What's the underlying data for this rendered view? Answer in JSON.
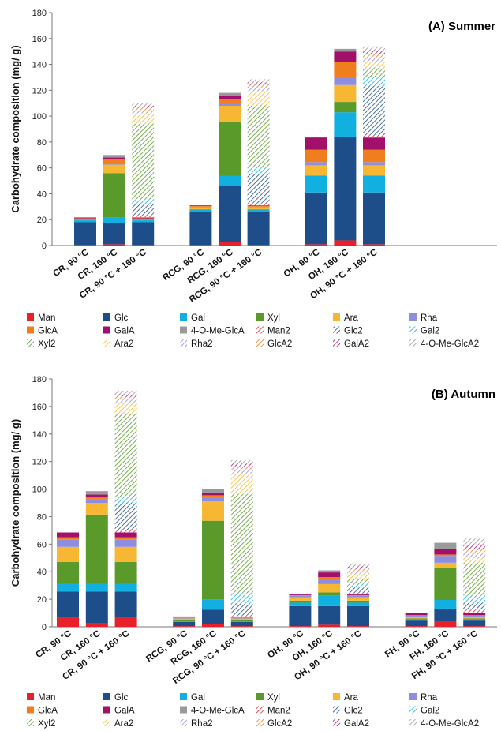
{
  "palette": {
    "Man": "#e8202a",
    "Glc": "#1d4e89",
    "Gal": "#12b0e0",
    "Xyl": "#5a9a2a",
    "Ara": "#f7b733",
    "Rha": "#8e8ee0",
    "GlcA": "#f07d1e",
    "GalA": "#a3106b",
    "4-O-Me-GlcA": "#9a9a9a"
  },
  "legend": {
    "columns": 6,
    "entries": [
      {
        "label": "Man",
        "color": "Man",
        "hatched": false
      },
      {
        "label": "Glc",
        "color": "Glc",
        "hatched": false
      },
      {
        "label": "Gal",
        "color": "Gal",
        "hatched": false
      },
      {
        "label": "Xyl",
        "color": "Xyl",
        "hatched": false
      },
      {
        "label": "Ara",
        "color": "Ara",
        "hatched": false
      },
      {
        "label": "Rha",
        "color": "Rha",
        "hatched": false
      },
      {
        "label": "GlcA",
        "color": "GlcA",
        "hatched": false
      },
      {
        "label": "GalA",
        "color": "GalA",
        "hatched": false
      },
      {
        "label": "4-O-Me-GlcA",
        "color": "4-O-Me-GlcA",
        "hatched": false
      },
      {
        "label": "Man2",
        "color": "Man",
        "hatched": true
      },
      {
        "label": "Glc2",
        "color": "Glc",
        "hatched": true
      },
      {
        "label": "Gal2",
        "color": "Gal",
        "hatched": true
      },
      {
        "label": "Xyl2",
        "color": "Xyl",
        "hatched": true
      },
      {
        "label": "Ara2",
        "color": "Ara",
        "hatched": true
      },
      {
        "label": "Rha2",
        "color": "Rha",
        "hatched": true
      },
      {
        "label": "GlcA2",
        "color": "GlcA",
        "hatched": true
      },
      {
        "label": "GalA2",
        "color": "GalA",
        "hatched": true
      },
      {
        "label": "4-O-Me-GlcA2",
        "color": "4-O-Me-GlcA",
        "hatched": true
      }
    ]
  },
  "chart_data": [
    {
      "type": "bar",
      "stacked": true,
      "title": "(A) Summer",
      "ylabel": "Carbohydrate composition (mg/ g)",
      "ylim": [
        0,
        180
      ],
      "yticks": [
        0,
        20,
        40,
        60,
        80,
        100,
        120,
        140,
        160,
        180
      ],
      "stack_order": [
        "Man",
        "Glc",
        "Gal",
        "Xyl",
        "Ara",
        "Rha",
        "GlcA",
        "GalA",
        "4-O-Me-GlcA",
        "Man2",
        "Glc2",
        "Gal2",
        "Xyl2",
        "Ara2",
        "Rha2",
        "GlcA2",
        "GalA2",
        "4-O-Me-GlcA2"
      ],
      "categories": [
        "CR, 90 °C",
        "CR, 160 °C",
        "CR, 90 °C + 160 °C",
        "RCG, 90 °C",
        "RCG, 160 °C",
        "RCG, 90 °C + 160 °C",
        "OH, 90 °C",
        "OH, 160 °C",
        "OH, 90 °C + 160 °C"
      ],
      "slots": [
        0,
        1,
        2,
        4,
        5,
        6,
        8,
        9,
        10
      ],
      "series": [
        {
          "name": "Man",
          "values": [
            0.5,
            1.0,
            0.5,
            0.5,
            2.5,
            0.5,
            1.0,
            4.0,
            1.0
          ]
        },
        {
          "name": "Glc",
          "values": [
            17.5,
            16.5,
            17.5,
            25.5,
            43.5,
            25.5,
            40.0,
            80.0,
            40.0
          ]
        },
        {
          "name": "Gal",
          "values": [
            1.5,
            4.0,
            1.5,
            1.5,
            8.0,
            1.5,
            13.0,
            19.0,
            13.0
          ]
        },
        {
          "name": "Xyl",
          "values": [
            0.5,
            34.5,
            0.5,
            0.5,
            41.5,
            0.5,
            0.0,
            8.0,
            0.0
          ]
        },
        {
          "name": "Ara",
          "values": [
            0.5,
            6.5,
            0.5,
            1.5,
            12.5,
            1.5,
            8.0,
            13.0,
            8.0
          ]
        },
        {
          "name": "Rha",
          "values": [
            0.0,
            1.5,
            0.0,
            0.5,
            2.0,
            0.5,
            2.5,
            6.0,
            2.5
          ]
        },
        {
          "name": "GlcA",
          "values": [
            0.5,
            2.5,
            0.5,
            0.5,
            3.5,
            0.5,
            9.5,
            12.0,
            9.5
          ]
        },
        {
          "name": "GalA",
          "values": [
            0.5,
            1.5,
            0.5,
            0.5,
            2.0,
            0.5,
            9.5,
            8.0,
            9.5
          ]
        },
        {
          "name": "4-O-Me-GlcA",
          "values": [
            0.5,
            2.0,
            0.5,
            0.0,
            2.5,
            0.0,
            0.0,
            2.0,
            0.0
          ]
        },
        {
          "name": "Man2",
          "values": [
            0,
            0,
            1.5,
            0,
            0,
            1.5,
            0,
            0,
            1.5
          ]
        },
        {
          "name": "Glc2",
          "values": [
            0,
            0,
            8.5,
            0,
            0,
            23.0,
            0,
            0,
            38.5
          ]
        },
        {
          "name": "Gal2",
          "values": [
            0,
            0,
            4.0,
            0,
            0,
            5.0,
            0,
            0,
            6.5
          ]
        },
        {
          "name": "Xyl2",
          "values": [
            0,
            0,
            58.0,
            0,
            0,
            48.0,
            0,
            0,
            7.5
          ]
        },
        {
          "name": "Ara2",
          "values": [
            0,
            0,
            8.5,
            0,
            0,
            11.0,
            0,
            0,
            5.0
          ]
        },
        {
          "name": "Rha2",
          "values": [
            0,
            0,
            2.0,
            0,
            0,
            2.0,
            0,
            0,
            2.5
          ]
        },
        {
          "name": "GlcA2",
          "values": [
            0,
            0,
            2.0,
            0,
            0,
            2.5,
            0,
            0,
            3.0
          ]
        },
        {
          "name": "GalA2",
          "values": [
            0,
            0,
            1.5,
            0,
            0,
            2.0,
            0,
            0,
            3.0
          ]
        },
        {
          "name": "4-O-Me-GlcA2",
          "values": [
            0,
            0,
            2.5,
            0,
            0,
            2.5,
            0,
            0,
            3.0
          ]
        }
      ]
    },
    {
      "type": "bar",
      "stacked": true,
      "title": "(B) Autumn",
      "ylabel": "Carbohydrate composition (mg/ g)",
      "ylim": [
        0,
        180
      ],
      "yticks": [
        0,
        20,
        40,
        60,
        80,
        100,
        120,
        140,
        160,
        180
      ],
      "stack_order": [
        "Man",
        "Glc",
        "Gal",
        "Xyl",
        "Ara",
        "Rha",
        "GlcA",
        "GalA",
        "4-O-Me-GlcA",
        "Man2",
        "Glc2",
        "Gal2",
        "Xyl2",
        "Ara2",
        "Rha2",
        "GlcA2",
        "GalA2",
        "4-O-Me-GlcA2"
      ],
      "categories": [
        "CR, 90 °C",
        "CR, 160 °C",
        "CR, 90 °C + 160 °C",
        "RCG, 90 °C",
        "RCG, 160 °C",
        "RCG, 90 °C + 160 °C",
        "OH, 90 °C",
        "OH, 160 °C",
        "OH, 90 °C + 160 °C",
        "FH, 90 °C",
        "FH, 160 °C",
        "FH, 90 °C + 160 °C"
      ],
      "slots": [
        0,
        1,
        2,
        4,
        5,
        6,
        8,
        9,
        10,
        12,
        13,
        14
      ],
      "series": [
        {
          "name": "Man",
          "values": [
            6.5,
            2.5,
            6.5,
            0.5,
            2.0,
            0.5,
            0.5,
            1.5,
            0.5,
            0.5,
            4.0,
            0.5
          ]
        },
        {
          "name": "Glc",
          "values": [
            19.0,
            23.0,
            19.0,
            3.0,
            10.5,
            3.0,
            14.5,
            13.5,
            14.5,
            4.0,
            9.0,
            4.0
          ]
        },
        {
          "name": "Gal",
          "values": [
            5.5,
            5.5,
            5.5,
            0.5,
            7.5,
            0.5,
            2.5,
            7.5,
            2.5,
            1.0,
            6.5,
            1.0
          ]
        },
        {
          "name": "Xyl",
          "values": [
            16.0,
            50.5,
            16.0,
            1.0,
            57.0,
            1.0,
            1.5,
            2.5,
            1.5,
            0.5,
            23.5,
            0.5
          ]
        },
        {
          "name": "Ara",
          "values": [
            11.0,
            8.5,
            11.0,
            1.0,
            14.0,
            1.0,
            2.5,
            6.0,
            2.5,
            1.0,
            3.5,
            1.0
          ]
        },
        {
          "name": "Rha",
          "values": [
            5.5,
            2.5,
            5.5,
            0.5,
            3.0,
            0.5,
            1.0,
            3.5,
            1.0,
            1.0,
            5.0,
            1.0
          ]
        },
        {
          "name": "GlcA",
          "values": [
            1.5,
            1.5,
            1.5,
            0.5,
            1.5,
            0.5,
            0.5,
            1.5,
            0.5,
            0.5,
            1.0,
            0.5
          ]
        },
        {
          "name": "GalA",
          "values": [
            3.5,
            2.0,
            3.5,
            0.5,
            2.0,
            0.5,
            0.5,
            3.5,
            0.5,
            1.5,
            4.0,
            1.5
          ]
        },
        {
          "name": "4-O-Me-GlcA",
          "values": [
            0.0,
            2.5,
            0.0,
            0.0,
            2.5,
            0.0,
            0.0,
            1.5,
            0.0,
            0.0,
            4.5,
            0.0
          ]
        },
        {
          "name": "Man2",
          "values": [
            0,
            0,
            1.5,
            0,
            0,
            1.0,
            0,
            0,
            1.0,
            0,
            0,
            2.5
          ]
        },
        {
          "name": "Glc2",
          "values": [
            0,
            0,
            20.0,
            0,
            0,
            8.5,
            0,
            0,
            4.0,
            0,
            0,
            5.0
          ]
        },
        {
          "name": "Gal2",
          "values": [
            0,
            0,
            4.5,
            0,
            0,
            7.5,
            0,
            0,
            3.5,
            0,
            0,
            5.5
          ]
        },
        {
          "name": "Xyl2",
          "values": [
            0,
            0,
            60.0,
            0,
            0,
            72.0,
            0,
            0,
            3.0,
            0,
            0,
            23.5
          ]
        },
        {
          "name": "Ara2",
          "values": [
            0,
            0,
            8.5,
            0,
            0,
            15.0,
            0,
            0,
            3.5,
            0,
            0,
            3.5
          ]
        },
        {
          "name": "Rha2",
          "values": [
            0,
            0,
            2.0,
            0,
            0,
            3.0,
            0,
            0,
            2.0,
            0,
            0,
            4.0
          ]
        },
        {
          "name": "GlcA2",
          "values": [
            0,
            0,
            2.0,
            0,
            0,
            2.0,
            0,
            0,
            1.5,
            0,
            0,
            2.0
          ]
        },
        {
          "name": "GalA2",
          "values": [
            0,
            0,
            2.0,
            0,
            0,
            2.0,
            0,
            0,
            2.0,
            0,
            0,
            4.0
          ]
        },
        {
          "name": "4-O-Me-GlcA2",
          "values": [
            0,
            0,
            2.5,
            0,
            0,
            2.5,
            0,
            0,
            2.0,
            0,
            0,
            4.0
          ]
        }
      ]
    }
  ]
}
